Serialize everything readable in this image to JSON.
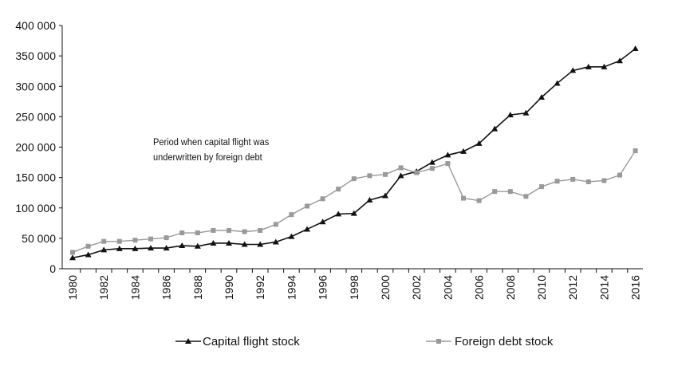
{
  "chart_data": {
    "type": "line",
    "title": "",
    "xlabel": "",
    "ylabel": "",
    "ylim": [
      0,
      400000
    ],
    "yticks": [
      "0",
      "50 000",
      "100 000",
      "150 000",
      "200 000",
      "250 000",
      "300 000",
      "350 000",
      "400 000"
    ],
    "xticks": [
      "1980",
      "1982",
      "1984",
      "1986",
      "1988",
      "1990",
      "1992",
      "1994",
      "1996",
      "1998",
      "2000",
      "2002",
      "2004",
      "2006",
      "2008",
      "2010",
      "2012",
      "2014",
      "2016"
    ],
    "x": [
      1980,
      1981,
      1982,
      1983,
      1984,
      1985,
      1986,
      1987,
      1988,
      1989,
      1990,
      1991,
      1992,
      1993,
      1994,
      1995,
      1996,
      1997,
      1998,
      1999,
      2000,
      2001,
      2002,
      2003,
      2004,
      2005,
      2006,
      2007,
      2008,
      2009,
      2010,
      2011,
      2012,
      2013,
      2014,
      2015,
      2016
    ],
    "grid": false,
    "legend_position": "bottom",
    "annotation": [
      "Period when capital flight was",
      "underwritten by foreign debt"
    ],
    "series": [
      {
        "name": "Capital flight stock",
        "color": "#111111",
        "marker": "triangle",
        "values": [
          18000,
          23000,
          31000,
          33000,
          33000,
          34000,
          34000,
          38000,
          37000,
          42000,
          42000,
          40000,
          40000,
          44000,
          53000,
          65000,
          77000,
          90000,
          91000,
          113000,
          120000,
          153000,
          160000,
          175000,
          187000,
          193000,
          206000,
          230000,
          253000,
          256000,
          282000,
          305000,
          326000,
          332000,
          332000,
          342000,
          362000
        ]
      },
      {
        "name": "Foreign debt stock",
        "color": "#999999",
        "marker": "square",
        "values": [
          27000,
          37000,
          45000,
          45000,
          47000,
          49000,
          51000,
          59000,
          59000,
          63000,
          63000,
          61000,
          63000,
          73000,
          89000,
          103000,
          115000,
          131000,
          148000,
          153000,
          155000,
          166000,
          158000,
          165000,
          173000,
          116000,
          112000,
          127000,
          127000,
          119000,
          135000,
          144000,
          147000,
          143000,
          145000,
          154000,
          194000
        ]
      }
    ]
  }
}
